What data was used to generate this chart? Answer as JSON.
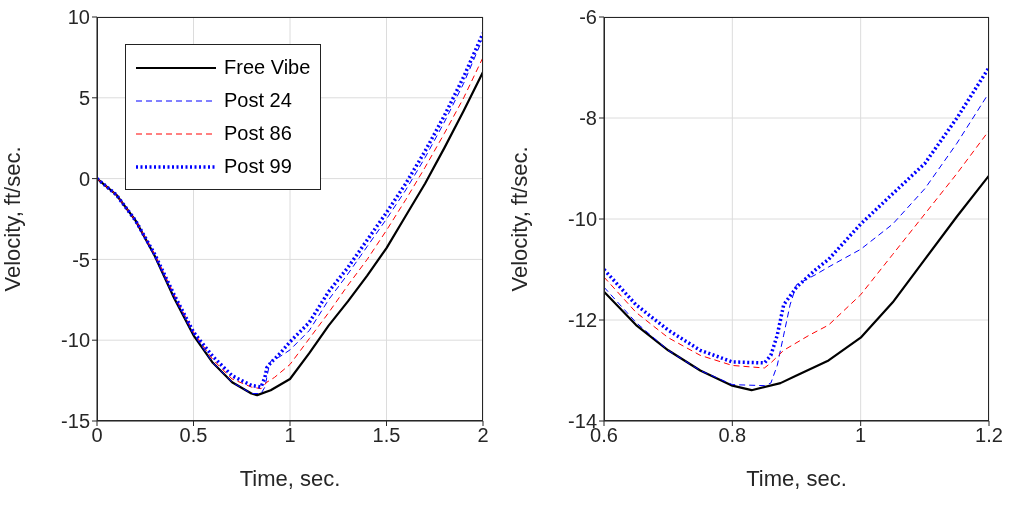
{
  "chart_data": [
    {
      "type": "line",
      "xlabel": "Time, sec.",
      "ylabel": "Velocity, ft/sec.",
      "xlim": [
        0,
        2
      ],
      "xticks": [
        0,
        0.5,
        1,
        1.5,
        2
      ],
      "ylim": [
        -15,
        10
      ],
      "yticks": [
        -15,
        -10,
        -5,
        0,
        5,
        10
      ],
      "grid": true,
      "legend": "top left",
      "marker": "none",
      "series": [
        {
          "name": "Free Vibe",
          "color": "#000000",
          "line_style": "solid",
          "x": [
            0,
            0.1,
            0.2,
            0.3,
            0.4,
            0.5,
            0.6,
            0.7,
            0.8,
            0.83,
            0.9,
            1.0,
            1.1,
            1.2,
            1.3,
            1.4,
            1.5,
            1.6,
            1.7,
            1.8,
            1.9,
            2.0
          ],
          "values": [
            0,
            -1.0,
            -2.6,
            -4.8,
            -7.4,
            -9.7,
            -11.4,
            -12.6,
            -13.3,
            -13.4,
            -13.1,
            -12.4,
            -10.8,
            -9.1,
            -7.6,
            -6.0,
            -4.3,
            -2.3,
            -0.3,
            1.9,
            4.2,
            6.6
          ]
        },
        {
          "name": "Post 24",
          "color": "#0000ff",
          "line_style": "dashed",
          "x": [
            0,
            0.1,
            0.2,
            0.3,
            0.4,
            0.5,
            0.6,
            0.7,
            0.8,
            0.85,
            0.87,
            0.89,
            0.9,
            0.95,
            1.0,
            1.1,
            1.2,
            1.3,
            1.4,
            1.5,
            1.6,
            1.7,
            1.8,
            1.9,
            2.0
          ],
          "values": [
            0,
            -1.0,
            -2.6,
            -4.8,
            -7.3,
            -9.6,
            -11.4,
            -12.6,
            -13.3,
            -13.3,
            -12.9,
            -11.7,
            -11.3,
            -11.0,
            -10.6,
            -9.4,
            -7.5,
            -5.9,
            -4.2,
            -2.5,
            -0.7,
            1.3,
            3.5,
            5.9,
            8.7
          ]
        },
        {
          "name": "Post 86",
          "color": "#ff0000",
          "line_style": "dashed",
          "x": [
            0,
            0.1,
            0.2,
            0.3,
            0.4,
            0.5,
            0.6,
            0.7,
            0.8,
            0.85,
            0.88,
            0.92,
            1.0,
            1.1,
            1.2,
            1.3,
            1.4,
            1.5,
            1.6,
            1.7,
            1.8,
            1.9,
            2.0
          ],
          "values": [
            0,
            -1.0,
            -2.6,
            -4.7,
            -7.2,
            -9.5,
            -11.2,
            -12.4,
            -12.9,
            -13.0,
            -12.6,
            -12.3,
            -11.5,
            -9.9,
            -8.3,
            -6.6,
            -5.0,
            -3.2,
            -1.3,
            0.7,
            2.8,
            5.0,
            7.5
          ]
        },
        {
          "name": "Post 99",
          "color": "#0000ff",
          "line_style": "dotted",
          "x": [
            0,
            0.1,
            0.2,
            0.3,
            0.4,
            0.5,
            0.6,
            0.7,
            0.8,
            0.85,
            0.87,
            0.88,
            0.9,
            0.95,
            1.0,
            1.1,
            1.2,
            1.3,
            1.4,
            1.5,
            1.6,
            1.7,
            1.8,
            1.9,
            2.0
          ],
          "values": [
            0,
            -1.0,
            -2.6,
            -4.7,
            -7.2,
            -9.5,
            -11.0,
            -12.2,
            -12.8,
            -12.9,
            -12.3,
            -11.7,
            -11.4,
            -10.8,
            -10.1,
            -8.9,
            -7.0,
            -5.5,
            -3.8,
            -2.1,
            -0.3,
            1.7,
            3.9,
            6.3,
            9.0
          ]
        }
      ]
    },
    {
      "type": "line",
      "xlabel": "Time, sec.",
      "ylabel": "Velocity, ft/sec.",
      "xlim": [
        0.6,
        1.2
      ],
      "xticks": [
        0.6,
        0.8,
        1,
        1.2
      ],
      "ylim": [
        -14,
        -6
      ],
      "yticks": [
        -14,
        -12,
        -10,
        -8,
        -6
      ],
      "grid": true,
      "marker": "none",
      "series": [
        {
          "color": "#000000",
          "line_style": "solid",
          "x": [
            0.6,
            0.65,
            0.7,
            0.75,
            0.8,
            0.83,
            0.875,
            0.9,
            0.95,
            1.0,
            1.05,
            1.1,
            1.15,
            1.2
          ],
          "values": [
            -11.44,
            -12.1,
            -12.6,
            -13.0,
            -13.3,
            -13.39,
            -13.25,
            -13.1,
            -12.8,
            -12.35,
            -11.65,
            -10.8,
            -9.95,
            -9.14
          ]
        },
        {
          "color": "#0000ff",
          "line_style": "dashed",
          "x": [
            0.6,
            0.65,
            0.7,
            0.75,
            0.8,
            0.85,
            0.86,
            0.87,
            0.88,
            0.89,
            0.9,
            0.93,
            0.95,
            1.0,
            1.05,
            1.1,
            1.15,
            1.2
          ],
          "values": [
            -11.35,
            -12.05,
            -12.6,
            -13.0,
            -13.28,
            -13.3,
            -13.25,
            -12.9,
            -12.3,
            -11.7,
            -11.3,
            -11.1,
            -10.95,
            -10.6,
            -10.1,
            -9.4,
            -8.5,
            -7.5
          ]
        },
        {
          "color": "#ff0000",
          "line_style": "dashed",
          "x": [
            0.6,
            0.65,
            0.7,
            0.75,
            0.8,
            0.85,
            0.86,
            0.88,
            0.92,
            0.95,
            1.0,
            1.05,
            1.1,
            1.15,
            1.2
          ],
          "values": [
            -11.15,
            -11.85,
            -12.35,
            -12.7,
            -12.9,
            -12.95,
            -12.85,
            -12.6,
            -12.3,
            -12.1,
            -11.5,
            -10.7,
            -9.9,
            -9.1,
            -8.25
          ]
        },
        {
          "color": "#0000ff",
          "line_style": "dotted",
          "x": [
            0.6,
            0.65,
            0.7,
            0.75,
            0.8,
            0.85,
            0.86,
            0.87,
            0.88,
            0.9,
            0.93,
            0.95,
            1.0,
            1.05,
            1.1,
            1.15,
            1.2
          ],
          "values": [
            -11.0,
            -11.7,
            -12.2,
            -12.6,
            -12.83,
            -12.85,
            -12.7,
            -12.3,
            -11.7,
            -11.35,
            -11.0,
            -10.8,
            -10.1,
            -9.5,
            -8.9,
            -8.0,
            -7.0
          ]
        }
      ]
    }
  ]
}
